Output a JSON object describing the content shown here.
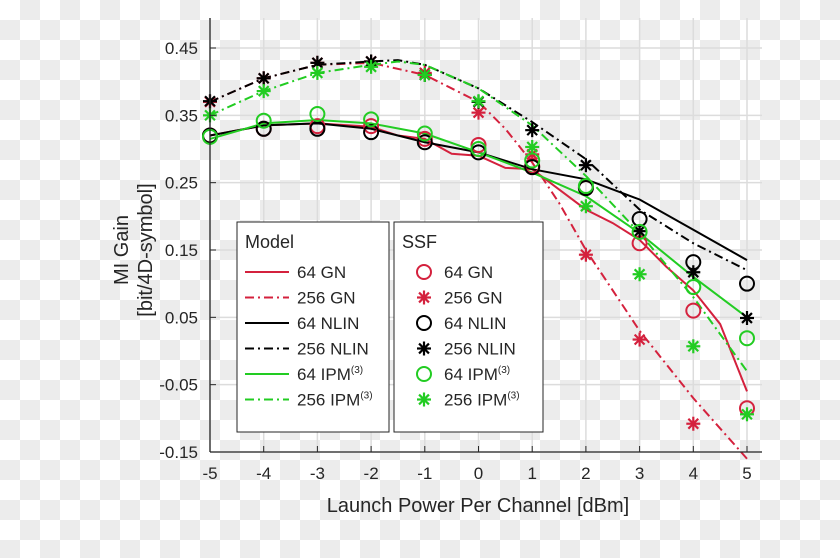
{
  "chart_data": {
    "type": "line",
    "xlabel": "Launch Power Per Channel [dBm]",
    "ylabel": [
      "MI Gain",
      "[bit/4D-symbol]"
    ],
    "xlim": [
      -5,
      5
    ],
    "ylim": [
      -0.15,
      0.45
    ],
    "xticks": [
      "-5",
      "-4",
      "-3",
      "-2",
      "-1",
      "0",
      "1",
      "2",
      "3",
      "4",
      "5"
    ],
    "yticks": [
      "0.45",
      "0.35",
      "0.25",
      "0.15",
      "0.05",
      "-0.05",
      "-0.15"
    ],
    "grid": true,
    "legend_groups": [
      {
        "title": "Model",
        "position": "bottom-left"
      },
      {
        "title": "SSF",
        "position": "bottom-left"
      }
    ],
    "model_series": [
      {
        "name": "64 GN",
        "sup": "",
        "color": "#d4213d",
        "dash": "solid",
        "x": [
          -5,
          -4,
          -3,
          -2,
          -1.5,
          -1,
          -0.5,
          0,
          0.5,
          1,
          1.5,
          2,
          2.5,
          3,
          3.5,
          4,
          4.5,
          5
        ],
        "y": [
          0.32,
          0.335,
          0.338,
          0.333,
          0.32,
          0.315,
          0.293,
          0.29,
          0.272,
          0.27,
          0.24,
          0.21,
          0.19,
          0.165,
          0.125,
          0.09,
          0.04,
          -0.06
        ]
      },
      {
        "name": "256 GN",
        "sup": "",
        "color": "#d4213d",
        "dash": "dashdot",
        "x": [
          -5,
          -4,
          -3,
          -2,
          -1,
          0,
          0.5,
          1,
          1.5,
          2,
          3,
          4,
          4.5,
          5
        ],
        "y": [
          0.37,
          0.405,
          0.425,
          0.428,
          0.41,
          0.37,
          0.33,
          0.28,
          0.22,
          0.15,
          0.03,
          -0.07,
          -0.115,
          -0.16
        ]
      },
      {
        "name": "64 NLIN",
        "sup": "",
        "color": "#000000",
        "dash": "solid",
        "x": [
          -5,
          -4,
          -3,
          -2,
          -1,
          0,
          1,
          2,
          3,
          4,
          5
        ],
        "y": [
          0.32,
          0.335,
          0.338,
          0.33,
          0.31,
          0.295,
          0.27,
          0.255,
          0.225,
          0.18,
          0.135
        ]
      },
      {
        "name": "256 NLIN",
        "sup": "",
        "color": "#000000",
        "dash": "dashdot",
        "x": [
          -5,
          -4,
          -3,
          -2,
          -1.5,
          -1,
          0,
          1,
          2,
          3,
          4,
          5
        ],
        "y": [
          0.37,
          0.405,
          0.425,
          0.43,
          0.432,
          0.425,
          0.39,
          0.34,
          0.285,
          0.21,
          0.16,
          0.12
        ]
      },
      {
        "name": "64 IPM",
        "sup": "(3)",
        "color": "#22cc22",
        "dash": "solid",
        "x": [
          -5,
          -4,
          -3,
          -2,
          -1,
          0,
          1,
          2,
          3,
          4,
          5
        ],
        "y": [
          0.315,
          0.338,
          0.343,
          0.338,
          0.323,
          0.295,
          0.265,
          0.23,
          0.175,
          0.11,
          0.05
        ]
      },
      {
        "name": "256 IPM",
        "sup": "(3)",
        "color": "#22cc22",
        "dash": "dashdot",
        "x": [
          -5,
          -4,
          -3,
          -2,
          -1.5,
          -1,
          0,
          1,
          2,
          3,
          4,
          5
        ],
        "y": [
          0.35,
          0.386,
          0.413,
          0.425,
          0.43,
          0.425,
          0.39,
          0.335,
          0.26,
          0.175,
          0.08,
          -0.03
        ]
      }
    ],
    "ssf_series": [
      {
        "name": "64 GN",
        "sup": "",
        "color": "#d4213d",
        "marker": "circle",
        "x": [
          -5,
          -4,
          -3,
          -2,
          -1,
          0,
          1,
          2,
          3,
          4,
          5
        ],
        "y": [
          0.32,
          0.33,
          0.334,
          0.334,
          0.315,
          0.306,
          0.275,
          0.242,
          0.16,
          0.06,
          -0.085
        ]
      },
      {
        "name": "256 GN",
        "sup": "",
        "color": "#d4213d",
        "marker": "star",
        "x": [
          -5,
          -4,
          -3,
          -2,
          -1,
          0,
          1,
          2,
          3,
          4
        ],
        "y": [
          0.37,
          0.405,
          0.428,
          0.43,
          0.413,
          0.354,
          0.292,
          0.143,
          0.017,
          -0.108
        ]
      },
      {
        "name": "64 NLIN",
        "sup": "",
        "color": "#000000",
        "marker": "circle",
        "x": [
          -5,
          -4,
          -3,
          -2,
          -1,
          0,
          1,
          2,
          3,
          4,
          5
        ],
        "y": [
          0.32,
          0.33,
          0.33,
          0.325,
          0.31,
          0.295,
          0.273,
          0.242,
          0.196,
          0.132,
          0.1
        ]
      },
      {
        "name": "256 NLIN",
        "sup": "",
        "color": "#000000",
        "marker": "star",
        "x": [
          -5,
          -4,
          -3,
          -2,
          -1,
          0,
          1,
          2,
          3,
          4,
          5
        ],
        "y": [
          0.371,
          0.405,
          0.428,
          0.43,
          0.41,
          0.37,
          0.328,
          0.276,
          0.178,
          0.117,
          0.049
        ]
      },
      {
        "name": "64 IPM",
        "sup": "(3)",
        "color": "#22cc22",
        "marker": "circle",
        "x": [
          -5,
          -4,
          -3,
          -2,
          -1,
          0,
          1,
          2,
          3,
          4,
          5
        ],
        "y": [
          0.318,
          0.342,
          0.352,
          0.344,
          0.323,
          0.3,
          0.283,
          0.245,
          0.177,
          0.095,
          0.019
        ]
      },
      {
        "name": "256 IPM",
        "sup": "(3)",
        "color": "#22cc22",
        "marker": "star",
        "x": [
          -5,
          -4,
          -3,
          -2,
          -1,
          0,
          1,
          2,
          3,
          4,
          5
        ],
        "y": [
          0.35,
          0.386,
          0.413,
          0.422,
          0.41,
          0.371,
          0.303,
          0.215,
          0.114,
          0.007,
          -0.094
        ]
      }
    ]
  }
}
